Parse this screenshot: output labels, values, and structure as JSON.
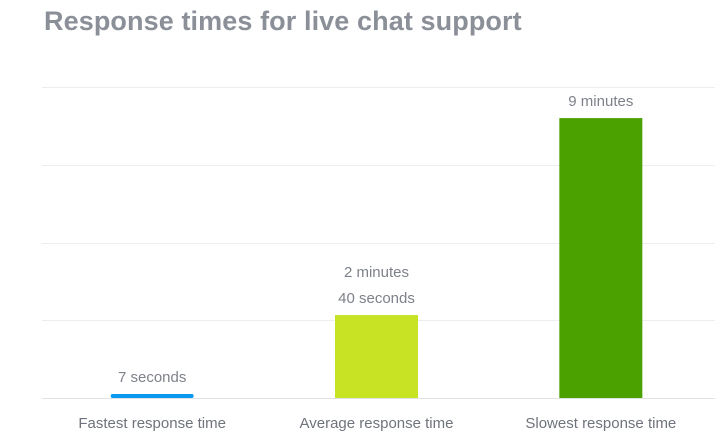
{
  "chart_data": {
    "type": "bar",
    "title": "Response times for live chat support",
    "categories": [
      "Fastest response time",
      "Average response time",
      "Slowest response time"
    ],
    "values": [
      7,
      160,
      540
    ],
    "unit": "seconds",
    "data_labels": [
      [
        "7 seconds"
      ],
      [
        "2 minutes",
        "40 seconds"
      ],
      [
        "9 minutes"
      ]
    ],
    "colors": [
      "#0a99f0",
      "#c7e323",
      "#4aa100"
    ],
    "ylim": [
      0,
      600
    ],
    "grid": true,
    "legend": "none"
  }
}
